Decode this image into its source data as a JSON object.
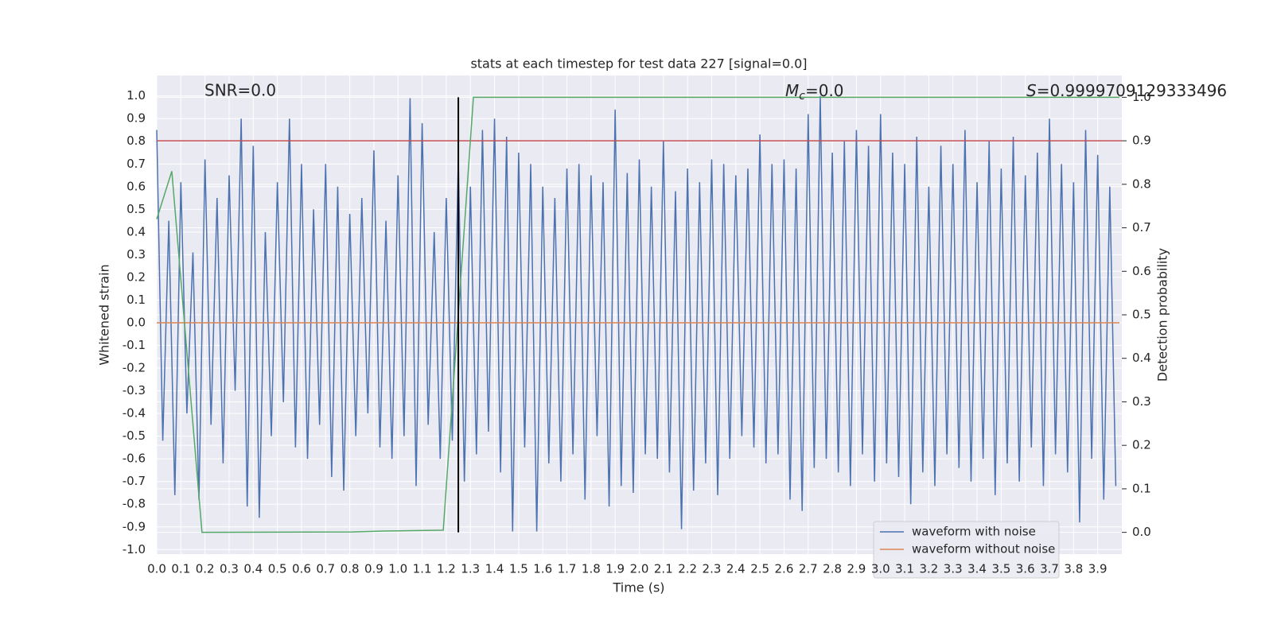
{
  "chart_data": {
    "type": "line",
    "title": "stats at each timestep for test data 227 [signal=0.0]",
    "xlabel": "Time (s)",
    "ylabel": "Whitened strain",
    "y2label": "Detection probability",
    "annotations": {
      "snr": "SNR=0.0",
      "mc": {
        "symbol": "M",
        "sub": "c",
        "rest": "=0.0"
      },
      "s": {
        "symbol": "S",
        "rest": "=0.9999709129333496"
      }
    },
    "xlim": [
      0,
      4.0
    ],
    "ylim": [
      -1.02,
      1.09
    ],
    "y2lim": [
      -0.05,
      1.05
    ],
    "grid": true,
    "legend": "lower right",
    "xticks": [
      {
        "value": 0,
        "label": "0.0"
      },
      0.1,
      0.2,
      0.3,
      0.4,
      0.5,
      0.6,
      0.7,
      0.8,
      0.9,
      {
        "value": 1,
        "label": "1.0"
      },
      1.1,
      1.2,
      1.3,
      1.4,
      1.5,
      1.6,
      1.7,
      1.8,
      1.9,
      {
        "value": 2,
        "label": "2.0"
      },
      2.1,
      2.2,
      2.3,
      2.4,
      2.5,
      2.6,
      2.7,
      2.8,
      2.9,
      {
        "value": 3,
        "label": "3.0"
      },
      3.1,
      3.2,
      3.3,
      3.4,
      3.5,
      3.6,
      3.7,
      3.8,
      3.9
    ],
    "yticks": [
      {
        "value": -1,
        "label": "-1.0"
      },
      -0.9,
      -0.8,
      -0.7,
      -0.6,
      -0.5,
      -0.4,
      -0.3,
      -0.2,
      -0.1,
      {
        "value": 0,
        "label": "0.0"
      },
      0.1,
      0.2,
      0.3,
      0.4,
      0.5,
      0.6,
      0.7,
      0.8,
      0.9,
      {
        "value": 1,
        "label": "1.0"
      }
    ],
    "y2ticks": [
      {
        "value": 0,
        "label": "0.0"
      },
      0.1,
      0.2,
      0.3,
      0.4,
      0.5,
      0.6,
      0.7,
      0.8,
      0.9,
      {
        "value": 1,
        "label": "1.0"
      }
    ],
    "series": [
      {
        "name": "waveform with noise",
        "color": "#4c72b0",
        "x": [
          0,
          0.025,
          0.05,
          0.075,
          0.1,
          0.125,
          0.15,
          0.175,
          0.2,
          0.225,
          0.25,
          0.275,
          0.3,
          0.325,
          0.35,
          0.375,
          0.4,
          0.425,
          0.45,
          0.475,
          0.5,
          0.525,
          0.55,
          0.575,
          0.6,
          0.625,
          0.65,
          0.675,
          0.7,
          0.725,
          0.75,
          0.775,
          0.8,
          0.825,
          0.85,
          0.875,
          0.9,
          0.925,
          0.95,
          0.975,
          1,
          1.025,
          1.05,
          1.075,
          1.1,
          1.125,
          1.15,
          1.175,
          1.2,
          1.225,
          1.25,
          1.275,
          1.3,
          1.325,
          1.35,
          1.375,
          1.4,
          1.425,
          1.45,
          1.475,
          1.5,
          1.525,
          1.55,
          1.575,
          1.6,
          1.625,
          1.65,
          1.675,
          1.7,
          1.725,
          1.75,
          1.775,
          1.8,
          1.825,
          1.85,
          1.875,
          1.9,
          1.925,
          1.95,
          1.975,
          2,
          2.025,
          2.05,
          2.075,
          2.1,
          2.125,
          2.15,
          2.175,
          2.2,
          2.225,
          2.25,
          2.275,
          2.3,
          2.325,
          2.35,
          2.375,
          2.4,
          2.425,
          2.45,
          2.475,
          2.5,
          2.525,
          2.55,
          2.575,
          2.6,
          2.625,
          2.65,
          2.675,
          2.7,
          2.725,
          2.75,
          2.775,
          2.8,
          2.825,
          2.85,
          2.875,
          2.9,
          2.925,
          2.95,
          2.975,
          3,
          3.025,
          3.05,
          3.075,
          3.1,
          3.125,
          3.15,
          3.175,
          3.2,
          3.225,
          3.25,
          3.275,
          3.3,
          3.325,
          3.35,
          3.375,
          3.4,
          3.425,
          3.45,
          3.475,
          3.5,
          3.525,
          3.55,
          3.575,
          3.6,
          3.625,
          3.65,
          3.675,
          3.7,
          3.725,
          3.75,
          3.775,
          3.8,
          3.825,
          3.85,
          3.875,
          3.9,
          3.925,
          3.95,
          3.975
        ],
        "values": [
          0.85,
          -0.52,
          0.45,
          -0.76,
          0.62,
          -0.4,
          0.31,
          -0.78,
          0.72,
          -0.45,
          0.55,
          -0.62,
          0.65,
          -0.3,
          0.9,
          -0.81,
          0.78,
          -0.86,
          0.4,
          -0.5,
          0.62,
          -0.35,
          0.9,
          -0.55,
          0.7,
          -0.6,
          0.5,
          -0.45,
          0.7,
          -0.68,
          0.6,
          -0.74,
          0.48,
          -0.5,
          0.55,
          -0.4,
          0.76,
          -0.55,
          0.45,
          -0.6,
          0.65,
          -0.5,
          0.99,
          -0.72,
          0.88,
          -0.45,
          0.4,
          -0.6,
          0.55,
          -0.52,
          0.72,
          -0.7,
          0.6,
          -0.58,
          0.85,
          -0.48,
          0.9,
          -0.66,
          0.82,
          -0.92,
          0.75,
          -0.55,
          0.7,
          -0.92,
          0.6,
          -0.62,
          0.55,
          -0.7,
          0.68,
          -0.58,
          0.7,
          -0.78,
          0.65,
          -0.5,
          0.62,
          -0.81,
          0.94,
          -0.72,
          0.66,
          -0.75,
          0.72,
          -0.58,
          0.6,
          -0.6,
          0.8,
          -0.66,
          0.58,
          -0.91,
          0.68,
          -0.74,
          0.62,
          -0.62,
          0.72,
          -0.76,
          0.7,
          -0.6,
          0.65,
          -0.5,
          0.68,
          -0.55,
          0.83,
          -0.62,
          0.7,
          -0.58,
          0.72,
          -0.78,
          0.68,
          -0.83,
          0.92,
          -0.64,
          1.0,
          -0.6,
          0.75,
          -0.66,
          0.8,
          -0.72,
          0.85,
          -0.58,
          0.78,
          -0.7,
          0.92,
          -0.62,
          0.75,
          -0.68,
          0.7,
          -0.8,
          0.82,
          -0.66,
          0.6,
          -0.72,
          0.78,
          -0.58,
          0.7,
          -0.64,
          0.85,
          -0.7,
          0.62,
          -0.6,
          0.8,
          -0.76,
          0.68,
          -0.62,
          0.82,
          -0.7,
          0.65,
          -0.55,
          0.75,
          -0.72,
          0.9,
          -0.58,
          0.7,
          -0.66,
          0.62,
          -0.88,
          0.85,
          -0.6,
          0.74,
          -0.78,
          0.6,
          -0.72
        ]
      },
      {
        "name": "waveform without noise",
        "color": "#dd8452",
        "x": [
          0,
          3.99
        ],
        "values": [
          0,
          0
        ]
      }
    ],
    "probability": {
      "color": "#55a868",
      "axis": "y2",
      "x": [
        0,
        0.0625,
        0.1875,
        0.8125,
        0.9375,
        1.1875,
        1.3125,
        3.99
      ],
      "values": [
        0.72,
        0.83,
        0.0,
        0.001,
        0.003,
        0.005,
        1.0,
        1.0
      ]
    },
    "threshold": {
      "color": "#c44e52",
      "axis": "y2",
      "value": 0.9
    },
    "marker_x": {
      "color": "#000000",
      "value": 1.25
    }
  }
}
